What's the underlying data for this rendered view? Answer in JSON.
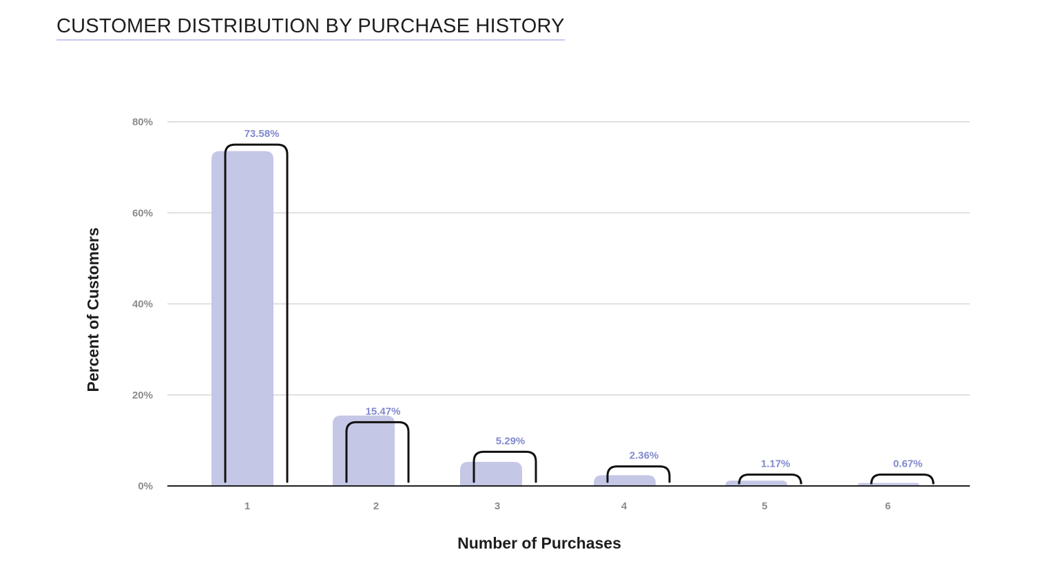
{
  "title": "CUSTOMER DISTRIBUTION BY PURCHASE HISTORY",
  "colors": {
    "bar": "#c5c7e6",
    "data_label": "#8089cc",
    "outline": "#111111",
    "grid": "#d6d6d6",
    "axis": "#1d1d1f",
    "tick": "#8a8a8a"
  },
  "chart_data": {
    "type": "bar",
    "title": "CUSTOMER DISTRIBUTION BY PURCHASE HISTORY",
    "xlabel": "Number of Purchases",
    "ylabel": "Percent of Customers",
    "categories": [
      "1",
      "2",
      "3",
      "4",
      "5",
      "6"
    ],
    "values": [
      73.58,
      15.47,
      5.29,
      2.36,
      1.17,
      0.67
    ],
    "data_labels": [
      "73.58%",
      "15.47%",
      "5.29%",
      "2.36%",
      "1.17%",
      "0.67%"
    ],
    "outline_values": [
      75,
      14,
      7.5,
      4.3,
      2.5,
      2.5
    ],
    "ylim": [
      0,
      80
    ],
    "yticks": [
      0,
      20,
      40,
      60,
      80
    ],
    "ytick_labels": [
      "0%",
      "20%",
      "40%",
      "60%",
      "80%"
    ],
    "grid": true,
    "legend": "none"
  }
}
